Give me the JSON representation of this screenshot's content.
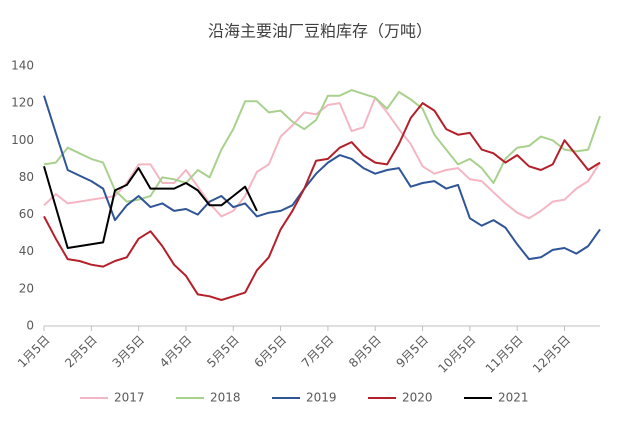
{
  "chart_data": {
    "type": "line",
    "title": "沿海主要油厂豆粕库存（万吨）",
    "categories": [
      "1月5日",
      null,
      null,
      null,
      "2月5日",
      null,
      null,
      null,
      "3月5日",
      null,
      null,
      null,
      "4月5日",
      null,
      null,
      null,
      "5月5日",
      null,
      null,
      null,
      "6月5日",
      null,
      null,
      null,
      "7月5日",
      null,
      null,
      null,
      "8月5日",
      null,
      null,
      null,
      "9月5日",
      null,
      null,
      null,
      "10月5日",
      null,
      null,
      null,
      "11月5日",
      null,
      null,
      null,
      "12月5日",
      null,
      null,
      null
    ],
    "series": [
      {
        "name": "2017",
        "color": "#f4b6c2",
        "values": [
          65,
          71,
          66,
          67,
          68,
          69,
          70,
          77,
          87,
          87,
          77,
          77,
          84,
          75,
          66,
          59,
          62,
          70,
          83,
          87,
          102,
          108,
          115,
          114,
          119,
          120,
          105,
          107,
          123,
          115,
          106,
          98,
          86,
          82,
          84,
          85,
          79,
          78,
          72,
          66,
          61,
          58,
          62,
          67,
          68,
          74,
          78,
          88
        ]
      },
      {
        "name": "2018",
        "color": "#a9d18e",
        "values": [
          87,
          88,
          96,
          93,
          90,
          88,
          73,
          67,
          68,
          70,
          80,
          79,
          77,
          84,
          80,
          95,
          106,
          121,
          121,
          115,
          116,
          110,
          106,
          111,
          124,
          124,
          127,
          125,
          123,
          117,
          126,
          122,
          117,
          103,
          95,
          87,
          90,
          85,
          77,
          90,
          96,
          97,
          102,
          100,
          95,
          94,
          95,
          113
        ]
      },
      {
        "name": "2019",
        "color": "#2f5597",
        "values": [
          124,
          104,
          84,
          81,
          78,
          74,
          57,
          65,
          70,
          64,
          66,
          62,
          63,
          60,
          67,
          70,
          64,
          66,
          59,
          61,
          62,
          65,
          74,
          82,
          88,
          92,
          90,
          85,
          82,
          84,
          85,
          75,
          77,
          78,
          74,
          76,
          58,
          54,
          57,
          53,
          44,
          36,
          37,
          41,
          42,
          39,
          43,
          52
        ]
      },
      {
        "name": "2020",
        "color": "#b4202a",
        "values": [
          59,
          47,
          36,
          35,
          33,
          32,
          35,
          37,
          47,
          51,
          43,
          33,
          27,
          17,
          16,
          14,
          16,
          18,
          30,
          37,
          52,
          62,
          74,
          89,
          90,
          96,
          99,
          92,
          88,
          87,
          98,
          112,
          120,
          116,
          106,
          103,
          104,
          95,
          93,
          88,
          92,
          86,
          84,
          87,
          100,
          92,
          84,
          88
        ]
      },
      {
        "name": "2021",
        "color": "#000000",
        "values": [
          86,
          64,
          42,
          43,
          44,
          45,
          73,
          76,
          85,
          74,
          74,
          74,
          77,
          73,
          65,
          65,
          70,
          75,
          62,
          null,
          null,
          null,
          null,
          null,
          null,
          null,
          null,
          null,
          null,
          null,
          null,
          null,
          null,
          null,
          null,
          null,
          null,
          null,
          null,
          null,
          null,
          null,
          null,
          null,
          null,
          null,
          null,
          null
        ]
      }
    ],
    "ylim": [
      0,
      140
    ],
    "yticks": [
      0,
      20,
      40,
      60,
      80,
      100,
      120,
      140
    ],
    "grid": false,
    "legend": "bottom"
  }
}
